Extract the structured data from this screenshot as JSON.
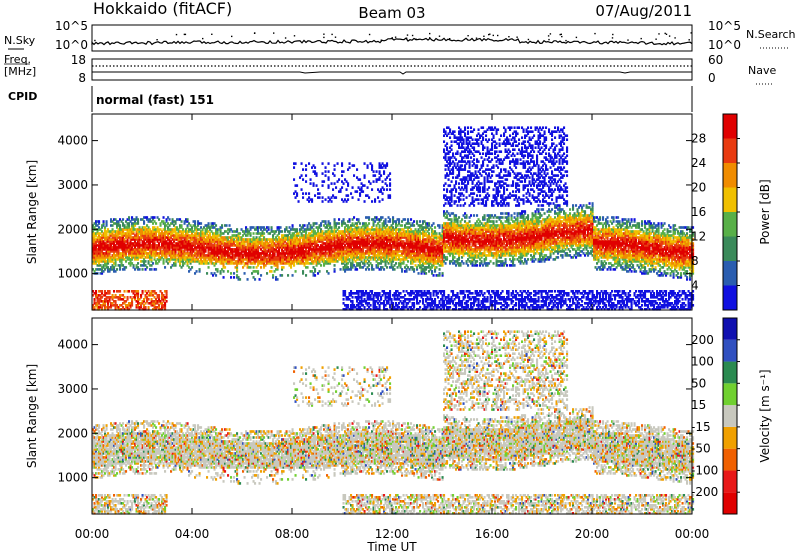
{
  "header": {
    "title": "Hokkaido (fitACF)",
    "beam": "Beam 03",
    "date": "07/Aug/2011"
  },
  "nsky": {
    "label": "N.Sky",
    "left_ticks": [
      "10^5",
      "10^0"
    ],
    "right_ticks": [
      "10^5",
      "10^0"
    ],
    "right_label": "N.Search",
    "right_style": "dotted"
  },
  "freq": {
    "label_line1": "Freq.",
    "label_line2": "[MHz]",
    "left_ticks": [
      "18",
      "8"
    ],
    "right_ticks": [
      "60",
      "0"
    ],
    "right_label": "Nave",
    "right_style": "dotted"
  },
  "cpid": {
    "label": "CPID",
    "value": "normal (fast) 151"
  },
  "xaxis": {
    "label": "Time UT",
    "ticks": [
      "00:00",
      "04:00",
      "08:00",
      "12:00",
      "16:00",
      "20:00",
      "00:00"
    ]
  },
  "colors": {
    "background": "#ffffff",
    "ground_scatter": "#c8c8be"
  },
  "chart_data": [
    {
      "type": "heatmap",
      "name": "power",
      "ylabel": "Slant Range [km]",
      "yticks": [
        "1000",
        "2000",
        "3000",
        "4000"
      ],
      "ylim": [
        180,
        4600
      ],
      "xlim_hours": [
        0,
        24
      ],
      "colorbar": {
        "label": "Power [dB]",
        "ticks": [
          "4",
          "8",
          "12",
          "16",
          "20",
          "24",
          "28"
        ],
        "colors": [
          "#1010e0",
          "#2a5db0",
          "#3a8a5a",
          "#58b048",
          "#f0c000",
          "#f08c00",
          "#e83a10",
          "#e00000"
        ]
      }
    },
    {
      "type": "heatmap",
      "name": "velocity",
      "ylabel": "Slant Range [km]",
      "yticks": [
        "1000",
        "2000",
        "3000",
        "4000"
      ],
      "ylim": [
        180,
        4600
      ],
      "xlim_hours": [
        0,
        24
      ],
      "colorbar": {
        "label": "Velocity [m s⁻¹]",
        "ticks": [
          "200",
          "100",
          "50",
          "15",
          "-15",
          "-50",
          "-100",
          "-200"
        ],
        "colors": [
          "#1010b0",
          "#3050c0",
          "#2a8a50",
          "#70d030",
          "#c8c8be",
          "#f0a000",
          "#f06000",
          "#e81818",
          "#e00000"
        ]
      }
    }
  ]
}
